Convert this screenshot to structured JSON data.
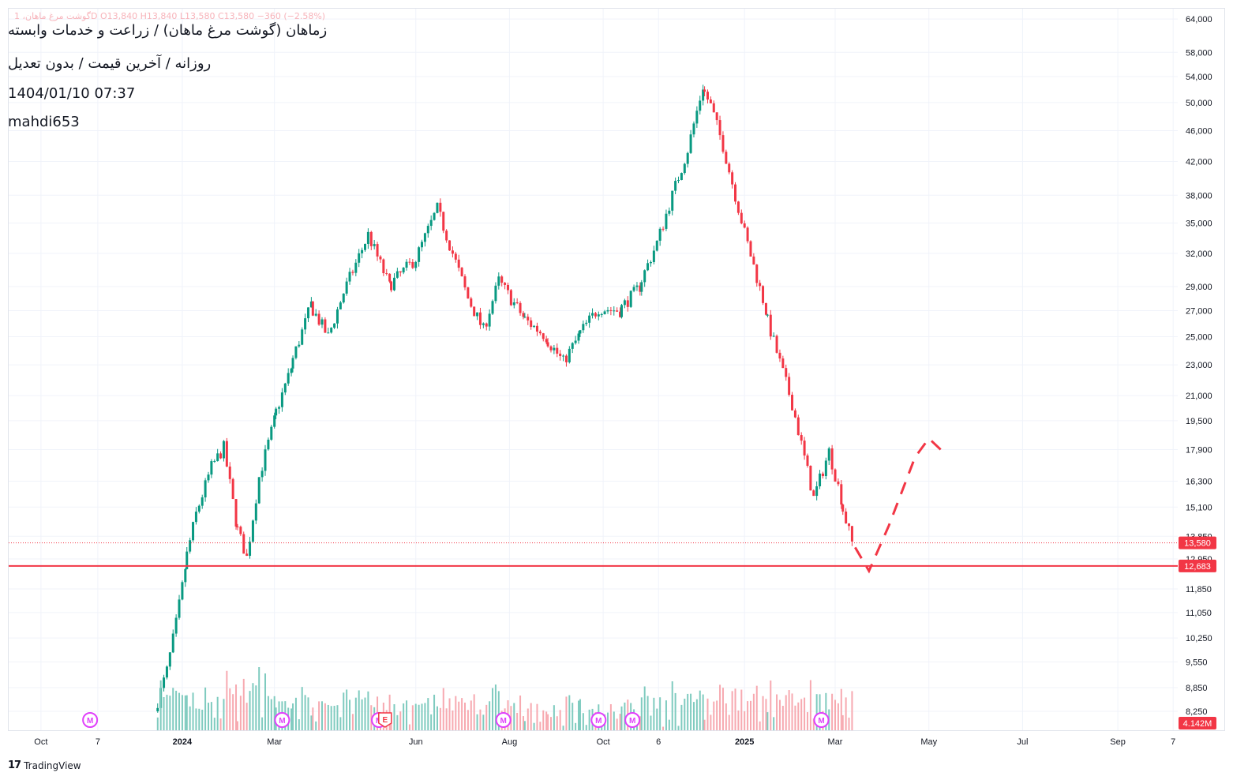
{
  "header": {
    "title": "زماهان (گوشت مرغ ماهان) / زراعت و خدمات وابسته",
    "subtitle": "روزانه / آخرین قیمت / بدون تعدیل",
    "timestamp": "1404/01/10 07:37",
    "author": "mahdi653",
    "ohlc": "گوشت مرغ ماهان، 1D  O13,840  H13,840  L13,580  C13,580  −360 (−2.58%)"
  },
  "footer": {
    "brand": "TradingView",
    "brand_mark": "17"
  },
  "colors": {
    "up": "#089981",
    "down": "#f23645",
    "up_volume": "#7fcbbf",
    "down_volume": "#f7a9b0",
    "grid": "#f0f3fa",
    "axis_text": "#131722",
    "marker": "#e040fb",
    "earnings": "#f23645"
  },
  "chart_data": {
    "type": "candlestick",
    "y_scale": "log",
    "ylim": [
      7800,
      66000
    ],
    "y_ticks": [
      64000,
      58000,
      54000,
      50000,
      46000,
      42000,
      38000,
      35000,
      32000,
      29000,
      27000,
      25000,
      23000,
      21000,
      19500,
      17900,
      16300,
      15100,
      13850,
      12950,
      11850,
      11050,
      10250,
      9550,
      8850,
      8250
    ],
    "y_tick_labels": [
      "64,000",
      "58,000",
      "54,000",
      "50,000",
      "46,000",
      "42,000",
      "38,000",
      "35,000",
      "32,000",
      "29,000",
      "27,000",
      "25,000",
      "23,000",
      "21,000",
      "19,500",
      "17,900",
      "16,300",
      "15,100",
      "13,850",
      "12,950",
      "11,850",
      "11,050",
      "10,250",
      "9,550",
      "8,850",
      "8,250"
    ],
    "x_range": [
      "2023-09-10",
      "2025-10-10"
    ],
    "x_ticks": [
      {
        "label": "Oct",
        "date": "2023-10-01"
      },
      {
        "label": "7",
        "date": "2023-11-07"
      },
      {
        "label": "2024",
        "date": "2024-01-01"
      },
      {
        "label": "Mar",
        "date": "2024-03-01"
      },
      {
        "label": "Jun",
        "date": "2024-06-01"
      },
      {
        "label": "Aug",
        "date": "2024-08-01"
      },
      {
        "label": "Oct",
        "date": "2024-10-01"
      },
      {
        "label": "6",
        "date": "2024-11-06"
      },
      {
        "label": "2025",
        "date": "2025-01-01"
      },
      {
        "label": "Mar",
        "date": "2025-03-01"
      },
      {
        "label": "May",
        "date": "2025-05-01"
      },
      {
        "label": "Jul",
        "date": "2025-07-01"
      },
      {
        "label": "Sep",
        "date": "2025-09-01"
      },
      {
        "label": "7",
        "date": "2025-10-07"
      }
    ],
    "price_path": [
      {
        "date": "2023-12-15",
        "price": 8250
      },
      {
        "date": "2023-12-22",
        "price": 9300
      },
      {
        "date": "2023-12-28",
        "price": 10700
      },
      {
        "date": "2024-01-03",
        "price": 12600
      },
      {
        "date": "2024-01-10",
        "price": 14800
      },
      {
        "date": "2024-01-20",
        "price": 17000
      },
      {
        "date": "2024-01-28",
        "price": 18000
      },
      {
        "date": "2024-02-05",
        "price": 14500
      },
      {
        "date": "2024-02-12",
        "price": 13000
      },
      {
        "date": "2024-02-20",
        "price": 16500
      },
      {
        "date": "2024-03-01",
        "price": 19500
      },
      {
        "date": "2024-03-12",
        "price": 22800
      },
      {
        "date": "2024-03-25",
        "price": 27500
      },
      {
        "date": "2024-04-05",
        "price": 25000
      },
      {
        "date": "2024-04-15",
        "price": 28500
      },
      {
        "date": "2024-05-01",
        "price": 33800
      },
      {
        "date": "2024-05-15",
        "price": 29000
      },
      {
        "date": "2024-06-01",
        "price": 31500
      },
      {
        "date": "2024-06-15",
        "price": 36500
      },
      {
        "date": "2024-06-25",
        "price": 32000
      },
      {
        "date": "2024-07-05",
        "price": 28000
      },
      {
        "date": "2024-07-15",
        "price": 25500
      },
      {
        "date": "2024-07-25",
        "price": 29500
      },
      {
        "date": "2024-08-10",
        "price": 26500
      },
      {
        "date": "2024-08-25",
        "price": 25000
      },
      {
        "date": "2024-09-05",
        "price": 23200
      },
      {
        "date": "2024-09-15",
        "price": 25000
      },
      {
        "date": "2024-09-28",
        "price": 27200
      },
      {
        "date": "2024-10-12",
        "price": 27000
      },
      {
        "date": "2024-10-25",
        "price": 29000
      },
      {
        "date": "2024-11-05",
        "price": 33000
      },
      {
        "date": "2024-11-15",
        "price": 38000
      },
      {
        "date": "2024-11-25",
        "price": 43500
      },
      {
        "date": "2024-12-05",
        "price": 52500
      },
      {
        "date": "2024-12-10",
        "price": 49500
      },
      {
        "date": "2024-12-18",
        "price": 44000
      },
      {
        "date": "2025-01-01",
        "price": 34000
      },
      {
        "date": "2025-01-15",
        "price": 27000
      },
      {
        "date": "2025-02-01",
        "price": 20500
      },
      {
        "date": "2025-02-15",
        "price": 15500
      },
      {
        "date": "2025-02-25",
        "price": 17800
      },
      {
        "date": "2025-03-05",
        "price": 15500
      },
      {
        "date": "2025-03-12",
        "price": 13580
      }
    ],
    "volume_peak": "4.142M",
    "last_price": 13580,
    "last_price_label": "13,580",
    "support_line": 12683,
    "support_line_label": "12,683",
    "projection": [
      {
        "date": "2025-03-14",
        "price": 13400
      },
      {
        "date": "2025-03-23",
        "price": 12500
      },
      {
        "date": "2025-04-05",
        "price": 14300
      },
      {
        "date": "2025-04-22",
        "price": 17500
      },
      {
        "date": "2025-05-01",
        "price": 18500
      },
      {
        "date": "2025-05-10",
        "price": 17800
      }
    ],
    "markers": [
      {
        "label": "M",
        "date": "2023-11-02"
      },
      {
        "label": "M",
        "date": "2024-03-06"
      },
      {
        "label": "M",
        "date": "2024-05-08"
      },
      {
        "label": "E",
        "date": "2024-05-12"
      },
      {
        "label": "M",
        "date": "2024-07-28"
      },
      {
        "label": "M",
        "date": "2024-09-28"
      },
      {
        "label": "M",
        "date": "2024-10-20"
      },
      {
        "label": "M",
        "date": "2025-02-20"
      }
    ]
  }
}
